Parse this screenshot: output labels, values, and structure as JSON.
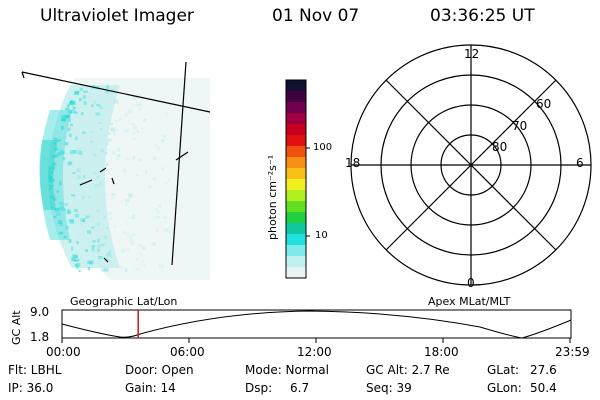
{
  "header": {
    "instrument": "Ultraviolet Imager",
    "date": "01 Nov 07",
    "time": "03:36:25 UT"
  },
  "colorbar": {
    "title": "photon cm⁻²s⁻¹",
    "ticks": [
      "100",
      "10"
    ],
    "colors": [
      "#101030",
      "#400040",
      "#700050",
      "#a00040",
      "#c8001e",
      "#e01010",
      "#f05010",
      "#f89018",
      "#f8c018",
      "#f0f020",
      "#b0f020",
      "#60e020",
      "#20d040",
      "#10c8a0",
      "#20e0e0",
      "#80eaea",
      "#c0f0f0",
      "#e8f4f4"
    ]
  },
  "polar_plot": {
    "ring_labels": [
      "60",
      "70",
      "80"
    ],
    "clock_labels": {
      "top": "12",
      "left": "18",
      "right": "6",
      "bottom": "0"
    }
  },
  "timeline": {
    "y_axis_title": "GC Alt",
    "y_max": "9.0",
    "y_min": "1.8",
    "left_title": "Geographic Lat/Lon",
    "right_title": "Apex MLat/MLT",
    "x_ticks": [
      "00:00",
      "06:00",
      "12:00",
      "18:00",
      "23:59"
    ],
    "current_time_fraction": 0.15
  },
  "info": {
    "row1": {
      "flt": "Flt: LBHL",
      "door": "Door: Open",
      "mode": "Mode: Normal",
      "gcalt": "GC Alt: 2.7 Re",
      "glat_label": "GLat:",
      "glat_value": "27.6"
    },
    "row2": {
      "ip": "IP: 36.0",
      "gain": "Gain: 14",
      "dsp_label": "Dsp:",
      "dsp_value": "6.7",
      "seq": "Seq: 39",
      "glon_label": "GLon:",
      "glon_value": "50.4"
    }
  }
}
